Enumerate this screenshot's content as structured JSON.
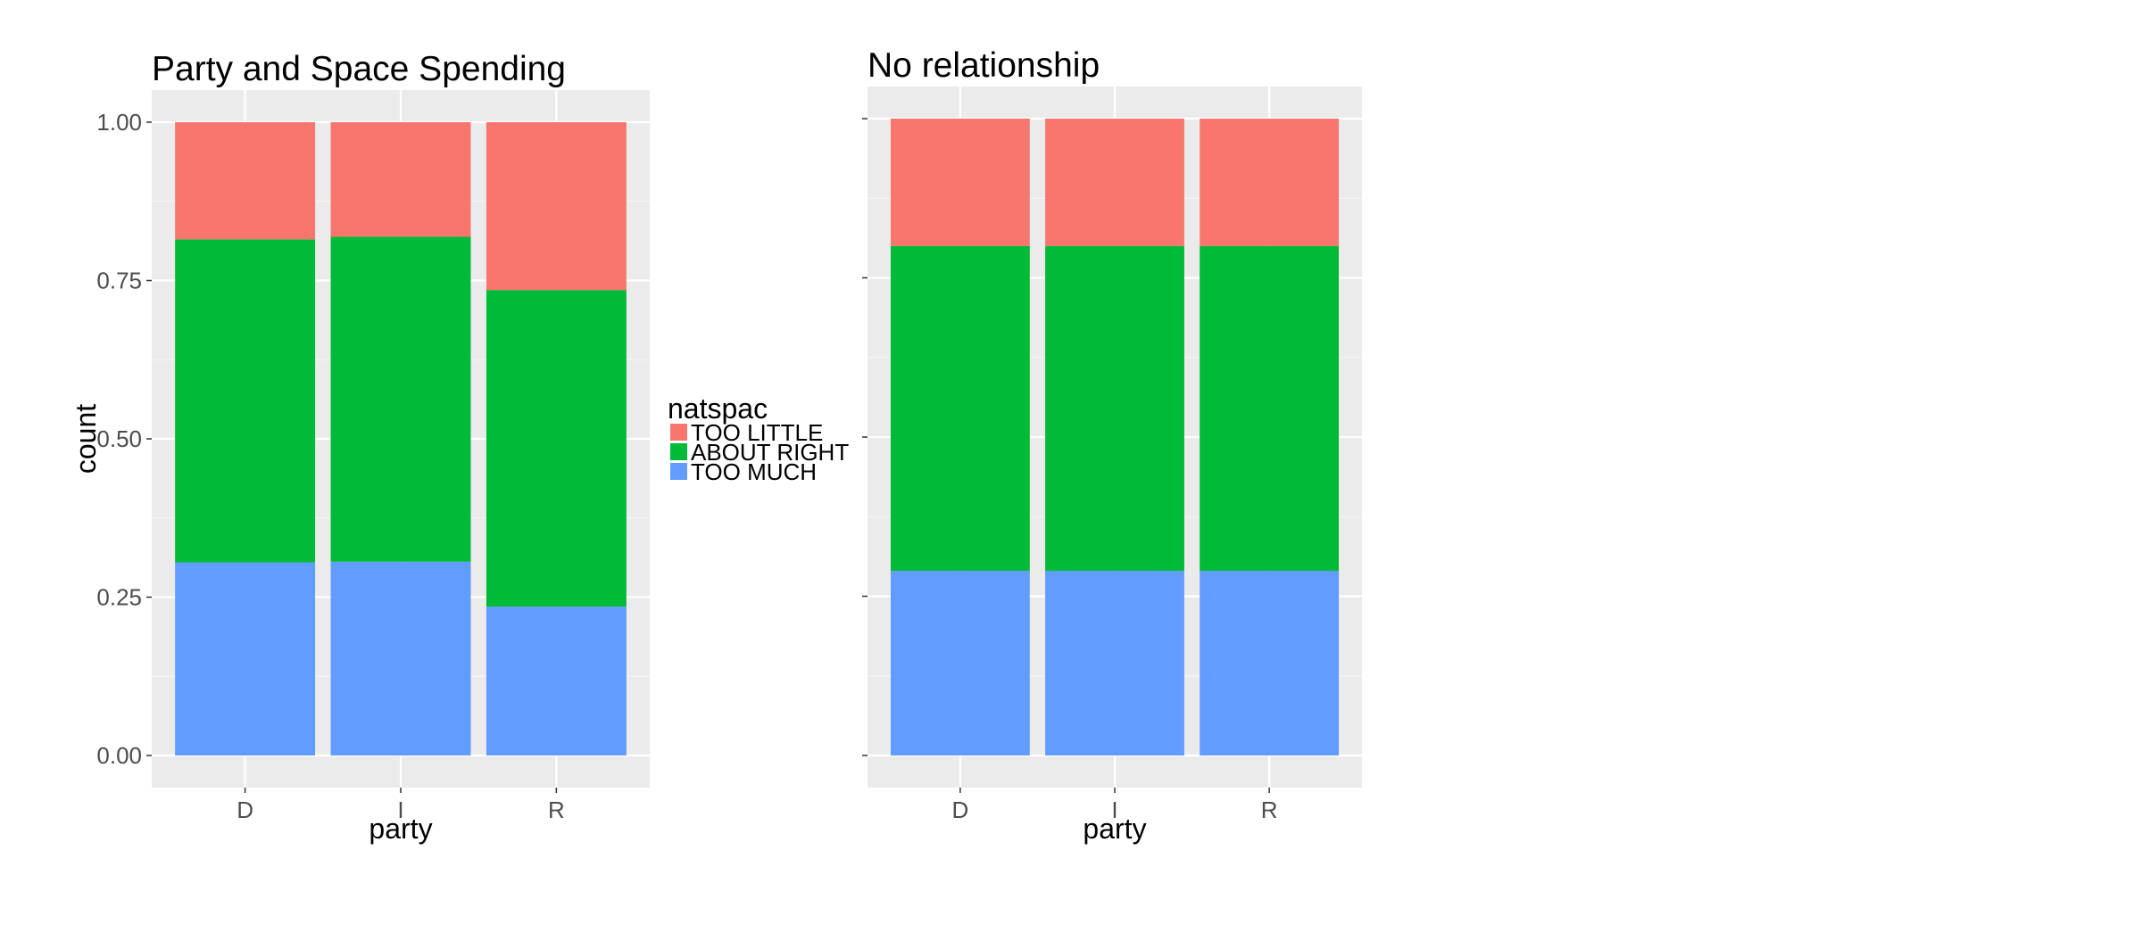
{
  "chart_data": [
    {
      "type": "bar",
      "stacked": true,
      "title": "Party and Space Spending",
      "xlabel": "party",
      "ylabel": "count",
      "categories": [
        "D",
        "I",
        "R"
      ],
      "ylim": [
        0,
        1
      ],
      "yticks": [
        "0.00",
        "0.25",
        "0.50",
        "0.75",
        "1.00"
      ],
      "series": [
        {
          "name": "TOO MUCH",
          "color": "#619CFF",
          "values": [
            0.305,
            0.306,
            0.235
          ]
        },
        {
          "name": "ABOUT RIGHT",
          "color": "#00BA38",
          "values": [
            0.51,
            0.513,
            0.5
          ]
        },
        {
          "name": "TOO LITTLE",
          "color": "#F8766D",
          "values": [
            0.185,
            0.181,
            0.265
          ]
        }
      ]
    },
    {
      "type": "bar",
      "stacked": true,
      "title": "No relationship",
      "xlabel": "party",
      "ylabel": "",
      "categories": [
        "D",
        "I",
        "R"
      ],
      "ylim": [
        0,
        1
      ],
      "yticks": [
        "",
        "",
        "",
        "",
        ""
      ],
      "series": [
        {
          "name": "TOO MUCH",
          "color": "#619CFF",
          "values": [
            0.29,
            0.29,
            0.29
          ]
        },
        {
          "name": "ABOUT RIGHT",
          "color": "#00BA38",
          "values": [
            0.51,
            0.51,
            0.51
          ]
        },
        {
          "name": "TOO LITTLE",
          "color": "#F8766D",
          "values": [
            0.2,
            0.2,
            0.2
          ]
        }
      ]
    }
  ],
  "legend": {
    "title": "natspac",
    "items": [
      {
        "label": "TOO LITTLE",
        "color": "#F8766D"
      },
      {
        "label": "ABOUT RIGHT",
        "color": "#00BA38"
      },
      {
        "label": "TOO MUCH",
        "color": "#619CFF"
      }
    ]
  }
}
